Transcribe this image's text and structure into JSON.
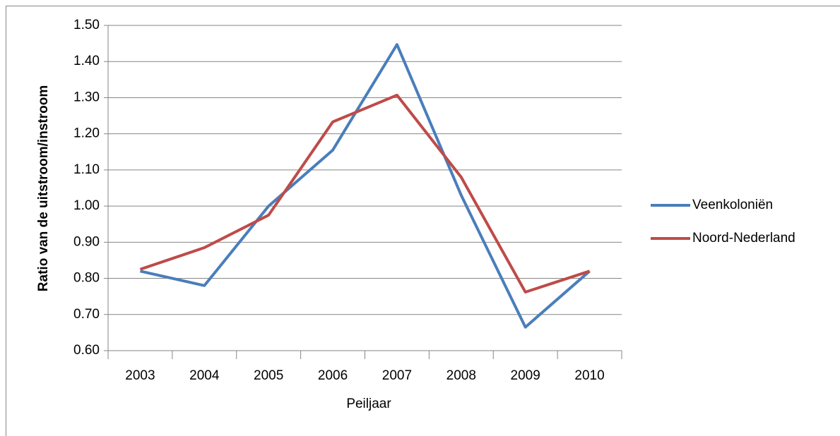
{
  "chart_data": {
    "type": "line",
    "xlabel": "Peiljaar",
    "ylabel": "Ratio van de uitstroom/instroom",
    "categories": [
      "2003",
      "2004",
      "2005",
      "2006",
      "2007",
      "2008",
      "2009",
      "2010"
    ],
    "series": [
      {
        "name": "Veenkoloniën",
        "color": "#4a7ebb",
        "values": [
          0.82,
          0.78,
          1.0,
          1.155,
          1.447,
          1.03,
          0.665,
          0.82
        ]
      },
      {
        "name": "Noord-Nederland",
        "color": "#be4b48",
        "values": [
          0.825,
          0.885,
          0.975,
          1.233,
          1.307,
          1.08,
          0.762,
          0.82
        ]
      }
    ],
    "ylim": [
      0.6,
      1.5
    ],
    "yticks": [
      {
        "value": 0.6,
        "label": "0.60"
      },
      {
        "value": 0.7,
        "label": "0.70"
      },
      {
        "value": 0.8,
        "label": "0.80"
      },
      {
        "value": 0.9,
        "label": "0.90"
      },
      {
        "value": 1.0,
        "label": "1.00"
      },
      {
        "value": 1.1,
        "label": "1.10"
      },
      {
        "value": 1.2,
        "label": "1.20"
      },
      {
        "value": 1.3,
        "label": "1.30"
      },
      {
        "value": 1.4,
        "label": "1.40"
      },
      {
        "value": 1.5,
        "label": "1.50"
      }
    ],
    "grid": true,
    "legend": "right"
  }
}
